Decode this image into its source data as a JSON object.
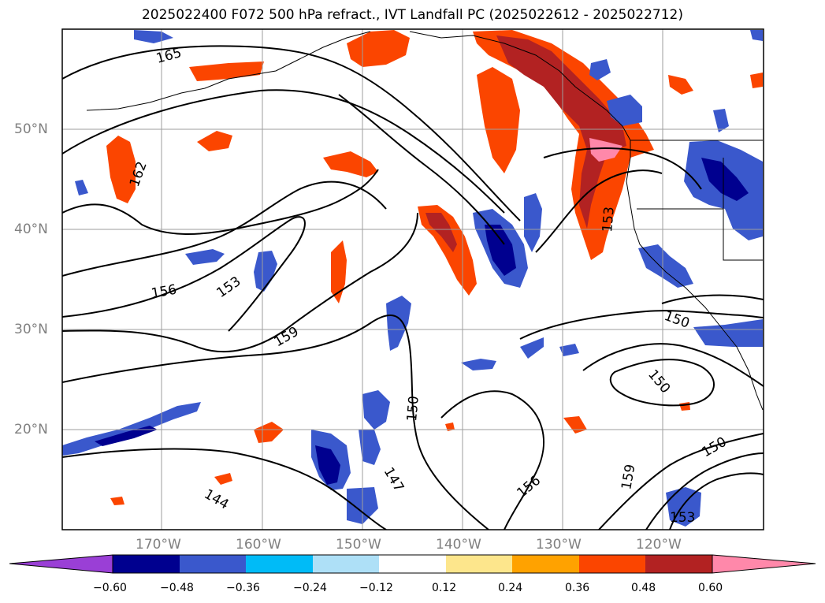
{
  "title": "2025022400 F072 500 hPa refract., IVT Landfall PC (2025022612 - 2025022712)",
  "lat_labels": [
    "50°N",
    "40°N",
    "30°N",
    "20°N"
  ],
  "lon_labels": [
    "170°W",
    "160°W",
    "150°W",
    "140°W",
    "130°W",
    "120°W"
  ],
  "contour_labels": [
    "165",
    "162",
    "156",
    "153",
    "159",
    "150",
    "147",
    "156",
    "159",
    "150",
    "150",
    "153",
    "144",
    "150",
    "153"
  ],
  "colorbar": {
    "ticks": [
      "−0.60",
      "−0.48",
      "−0.36",
      "−0.24",
      "−0.12",
      "0.12",
      "0.24",
      "0.36",
      "0.48",
      "0.60"
    ],
    "colors": [
      "#9a3fd6",
      "#00008f",
      "#3a58cc",
      "#00bbf7",
      "#aee0f7",
      "#ffffff",
      "#fde68c",
      "#ffa200",
      "#fb4500",
      "#b22222",
      "#ff88aa"
    ]
  },
  "colors": {
    "contour": "#000000",
    "coast": "#000000",
    "grid": "#9e9e9e"
  }
}
